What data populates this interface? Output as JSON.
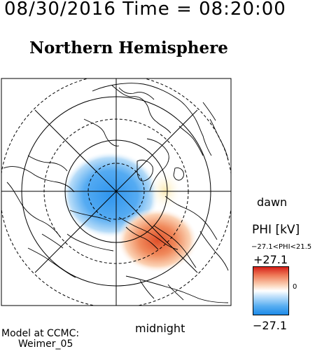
{
  "header": {
    "timestamp": "08/30/2016 Time = 08:20:00",
    "title": "Northern Hemisphere"
  },
  "map": {
    "projection": "north-polar stereographic",
    "dawn_label": "dawn",
    "midnight_label": "midnight",
    "negative_cell_color": "#2f95ee",
    "positive_cell_color": "#e0502a"
  },
  "colorbar": {
    "title": "PHI [kV]",
    "range_text": "−27.1<PHI<21.5",
    "max_label": "+27.1",
    "zero_label": "0",
    "min_label": "−27.1",
    "colors": [
      "#d62018",
      "#ffffff",
      "#1d8ae8"
    ]
  },
  "footer": {
    "model_line1": "Model at CCMC:",
    "model_line2": "Weimer_05"
  }
}
